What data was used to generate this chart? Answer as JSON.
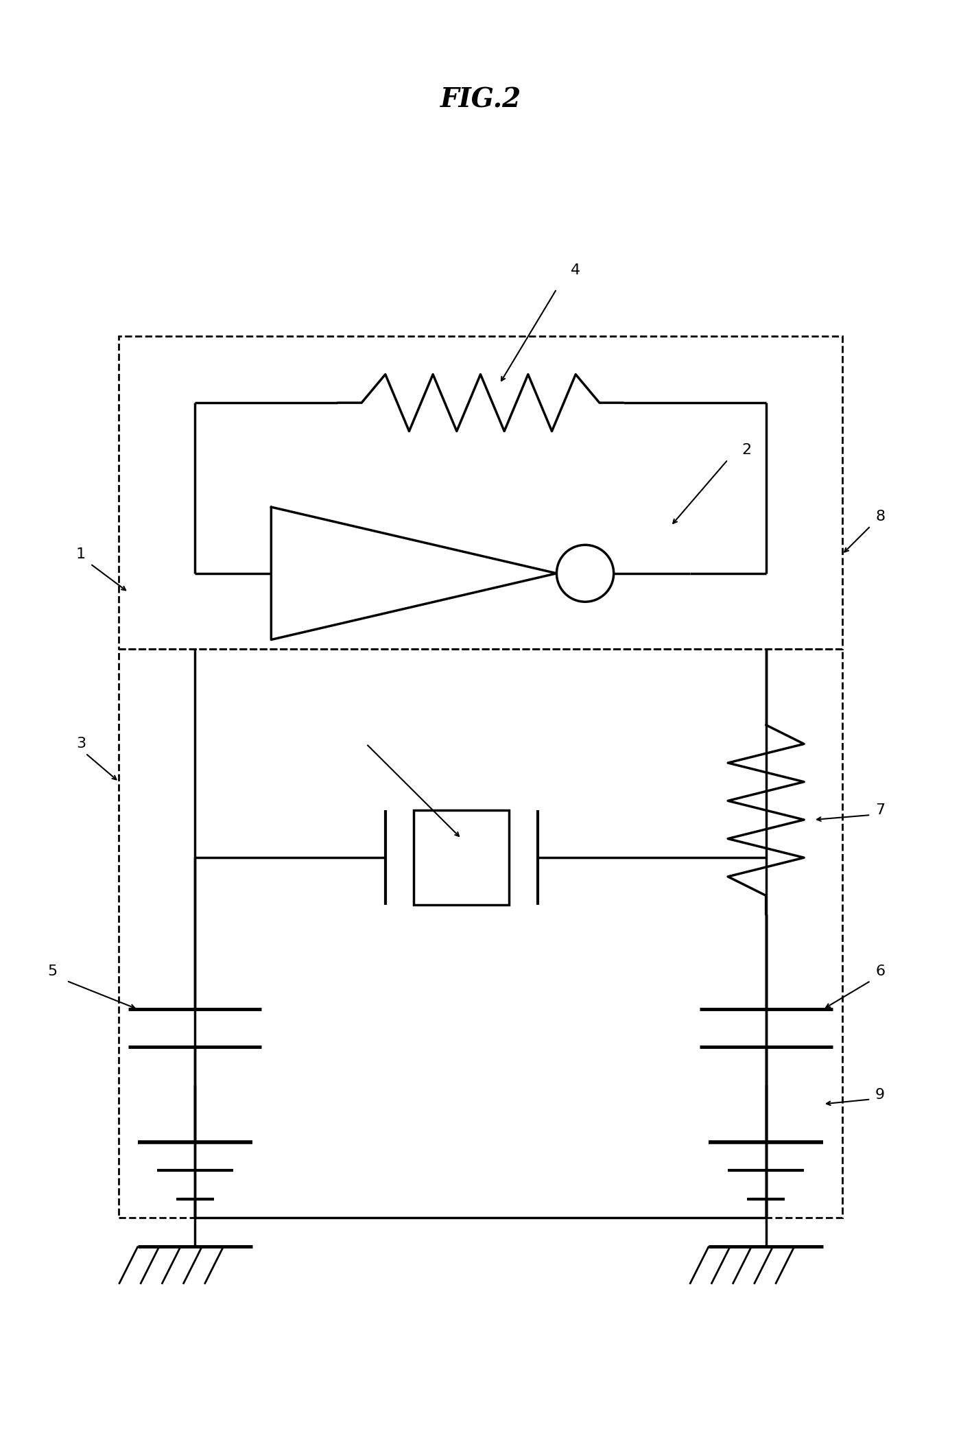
{
  "title": "FIG.2",
  "bg_color": "#ffffff",
  "line_color": "#000000",
  "lw": 2.5,
  "fig_width": 14.01,
  "fig_height": 20.86
}
